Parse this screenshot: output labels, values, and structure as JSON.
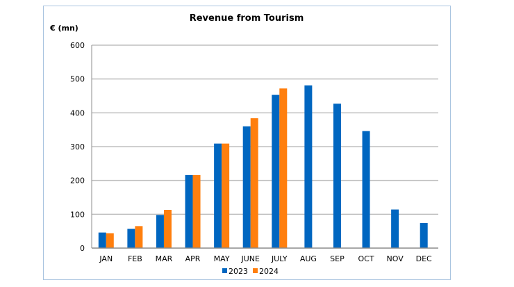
{
  "chart_data": {
    "type": "bar",
    "title": "Revenue from Tourism",
    "ylabel": "€ (mn)",
    "xlabel": "",
    "ylim": [
      0,
      600
    ],
    "yticks": [
      0,
      100,
      200,
      300,
      400,
      500,
      600
    ],
    "grid": true,
    "legend_position": "bottom",
    "categories": [
      "JAN",
      "FEB",
      "MAR",
      "APR",
      "MAY",
      "JUNE",
      "JULY",
      "AUG",
      "SEP",
      "OCT",
      "NOV",
      "DEC"
    ],
    "series": [
      {
        "name": "2023",
        "color": "#0066c0",
        "values": [
          46,
          57,
          98,
          216,
          309,
          360,
          453,
          481,
          427,
          346,
          114,
          74
        ]
      },
      {
        "name": "2024",
        "color": "#ff7f0e",
        "values": [
          44,
          65,
          113,
          216,
          309,
          384,
          472,
          null,
          null,
          null,
          null,
          null
        ]
      }
    ]
  }
}
